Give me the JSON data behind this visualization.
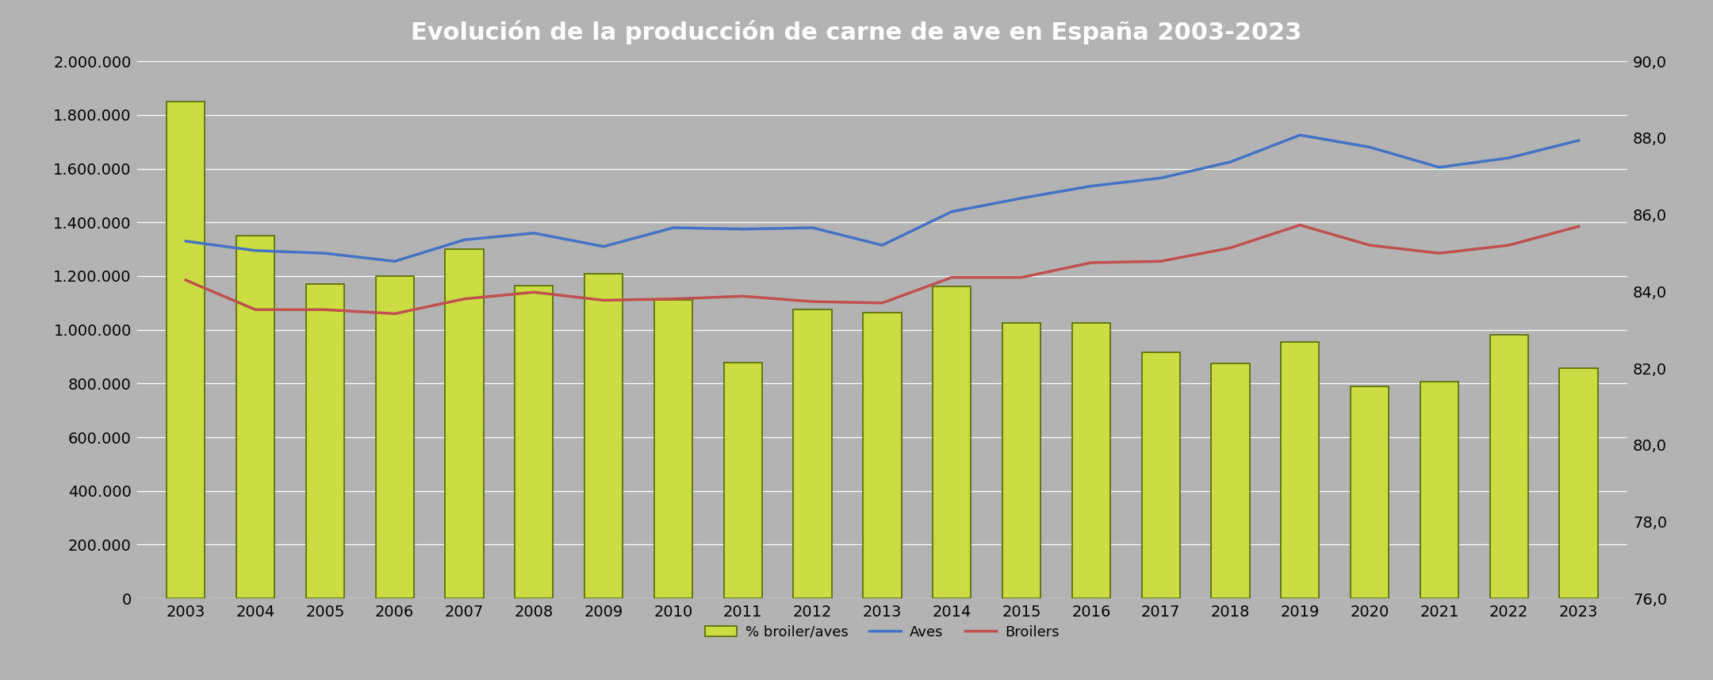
{
  "title": "Evolución de la producción de carne de ave en España 2003-2023",
  "years": [
    2003,
    2004,
    2005,
    2006,
    2007,
    2008,
    2009,
    2010,
    2011,
    2012,
    2013,
    2014,
    2015,
    2016,
    2017,
    2018,
    2019,
    2020,
    2021,
    2022,
    2023
  ],
  "aves": [
    1330000,
    1295000,
    1285000,
    1255000,
    1335000,
    1360000,
    1310000,
    1380000,
    1375000,
    1380000,
    1315000,
    1440000,
    1490000,
    1535000,
    1565000,
    1625000,
    1725000,
    1680000,
    1605000,
    1640000,
    1705000
  ],
  "broilers": [
    1185000,
    1075000,
    1075000,
    1060000,
    1115000,
    1140000,
    1110000,
    1115000,
    1125000,
    1105000,
    1100000,
    1195000,
    1195000,
    1250000,
    1255000,
    1305000,
    1390000,
    1315000,
    1285000,
    1315000,
    1385000
  ],
  "bars": [
    1850000,
    1350000,
    1170000,
    1200000,
    1300000,
    1165000,
    1210000,
    1110000,
    878000,
    1075000,
    1065000,
    1160000,
    1025000,
    1025000,
    915000,
    875000,
    955000,
    788000,
    808000,
    980000,
    858000
  ],
  "bar_color_face": "#ccdd44",
  "bar_color_edge": "#556b00",
  "line_aves_color": "#4472c4",
  "line_broilers_color": "#c0504d",
  "background_color": "#b3b3b3",
  "grid_color": "#ffffff",
  "title_fontsize": 22,
  "tick_fontsize": 14,
  "ylim_left": [
    0,
    2000000
  ],
  "yticks_left": [
    0,
    200000,
    400000,
    600000,
    800000,
    1000000,
    1200000,
    1400000,
    1600000,
    1800000,
    2000000
  ],
  "ylim_right": [
    76.0,
    90.0
  ],
  "yticks_right": [
    76.0,
    78.0,
    80.0,
    82.0,
    84.0,
    86.0,
    88.0,
    90.0
  ],
  "legend_labels": [
    "% broiler/aves",
    "Aves",
    "Broilers"
  ],
  "bar_width": 0.55,
  "line_width": 2.5
}
